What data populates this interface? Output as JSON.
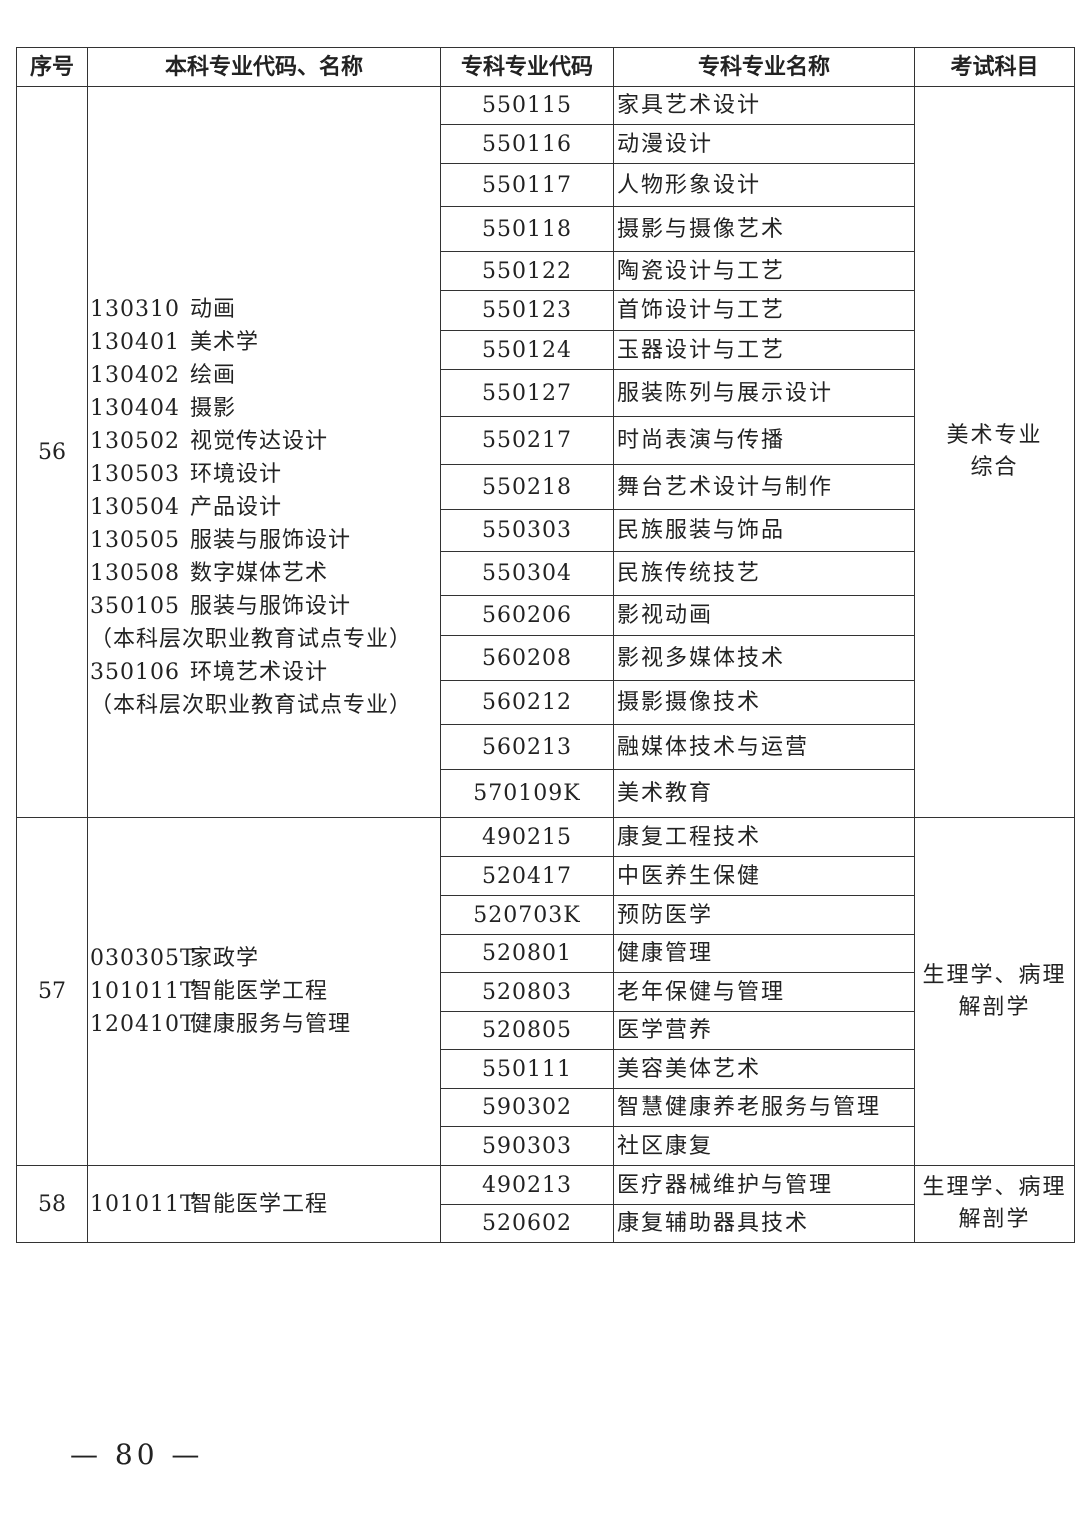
{
  "header": [
    "序号",
    "本科专业代码、名称",
    "专科专业代码",
    "专科专业名称",
    "考试科目"
  ],
  "groups": [
    {
      "seq": "56",
      "undergrad": [
        {
          "code": "130310",
          "name": "动画"
        },
        {
          "code": "130401",
          "name": "美术学"
        },
        {
          "code": "130402",
          "name": "绘画"
        },
        {
          "code": "130404",
          "name": "摄影"
        },
        {
          "code": "130502",
          "name": "视觉传达设计"
        },
        {
          "code": "130503",
          "name": "环境设计"
        },
        {
          "code": "130504",
          "name": "产品设计"
        },
        {
          "code": "130505",
          "name": "服装与服饰设计"
        },
        {
          "code": "130508",
          "name": "数字媒体艺术"
        },
        {
          "code": "350105",
          "name": "服装与服饰设计"
        },
        {
          "code": "",
          "name": "（本科层次职业教育试点专业）"
        },
        {
          "code": "350106",
          "name": "环境艺术设计"
        },
        {
          "code": "",
          "name": "（本科层次职业教育试点专业）"
        }
      ],
      "majors": [
        {
          "code": "550115",
          "name": "家具艺术设计"
        },
        {
          "code": "550116",
          "name": "动漫设计"
        },
        {
          "code": "550117",
          "name": "人物形象设计"
        },
        {
          "code": "550118",
          "name": "摄影与摄像艺术"
        },
        {
          "code": "550122",
          "name": "陶瓷设计与工艺"
        },
        {
          "code": "550123",
          "name": "首饰设计与工艺"
        },
        {
          "code": "550124",
          "name": "玉器设计与工艺"
        },
        {
          "code": "550127",
          "name": "服装陈列与展示设计"
        },
        {
          "code": "550217",
          "name": "时尚表演与传播"
        },
        {
          "code": "550218",
          "name": "舞台艺术设计与制作"
        },
        {
          "code": "550303",
          "name": "民族服装与饰品"
        },
        {
          "code": "550304",
          "name": "民族传统技艺"
        },
        {
          "code": "560206",
          "name": "影视动画"
        },
        {
          "code": "560208",
          "name": "影视多媒体技术"
        },
        {
          "code": "560212",
          "name": "摄影摄像技术"
        },
        {
          "code": "560213",
          "name": "融媒体技术与运营"
        },
        {
          "code": "570109K",
          "name": "美术教育"
        }
      ],
      "exam": [
        "美术专业",
        "综合"
      ]
    },
    {
      "seq": "57",
      "undergrad": [
        {
          "code": "030305T",
          "name": "家政学"
        },
        {
          "code": "101011T",
          "name": "智能医学工程"
        },
        {
          "code": "120410T",
          "name": "健康服务与管理"
        }
      ],
      "majors": [
        {
          "code": "490215",
          "name": "康复工程技术"
        },
        {
          "code": "520417",
          "name": "中医养生保健"
        },
        {
          "code": "520703K",
          "name": "预防医学"
        },
        {
          "code": "520801",
          "name": "健康管理"
        },
        {
          "code": "520803",
          "name": "老年保健与管理"
        },
        {
          "code": "520805",
          "name": "医学营养"
        },
        {
          "code": "550111",
          "name": "美容美体艺术"
        },
        {
          "code": "590302",
          "name": "智慧健康养老服务与管理"
        },
        {
          "code": "590303",
          "name": "社区康复"
        }
      ],
      "exam": [
        "生理学、病理",
        "解剖学"
      ]
    },
    {
      "seq": "58",
      "undergrad": [
        {
          "code": "101011T",
          "name": "智能医学工程"
        }
      ],
      "majors": [
        {
          "code": "490213",
          "name": "医疗器械维护与管理"
        },
        {
          "code": "520602",
          "name": "康复辅助器具技术"
        }
      ],
      "exam": [
        "生理学、病理",
        "解剖学"
      ]
    }
  ],
  "page_number": "— 80 —"
}
